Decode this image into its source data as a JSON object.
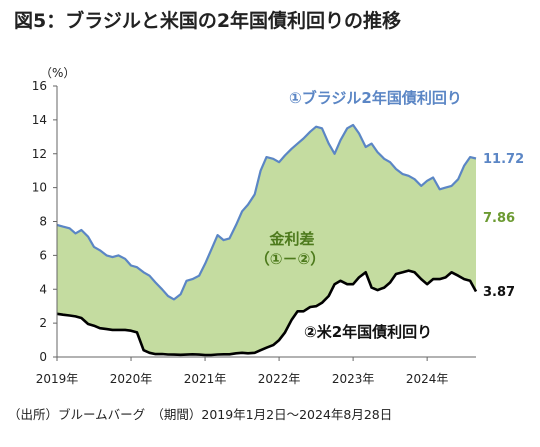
{
  "title": "図5：ブラジルと米国の2年国債利回りの推移",
  "source_note": "（出所）ブルームバーグ　（期間）2019年1月2日～2024年8月28日",
  "chart_data": {
    "type": "line",
    "title": "図5：ブラジルと米国の2年国債利回りの推移",
    "ylabel": "（%）",
    "xlabel": "",
    "ylim": [
      0,
      16
    ],
    "yticks": [
      0,
      2,
      4,
      6,
      8,
      10,
      12,
      14,
      16
    ],
    "xlim": [
      2019.0,
      2024.66
    ],
    "xticks": [
      {
        "value": 2019,
        "label": "2019年"
      },
      {
        "value": 2020,
        "label": "2020年"
      },
      {
        "value": 2021,
        "label": "2021年"
      },
      {
        "value": 2022,
        "label": "2022年"
      },
      {
        "value": 2023,
        "label": "2023年"
      },
      {
        "value": 2024,
        "label": "2024年"
      }
    ],
    "grid": false,
    "colors": {
      "brazil": "#5b86c5",
      "us": "#000000",
      "spread": "#c4dca0",
      "spread_label": "#6c9a32"
    },
    "series": [
      {
        "name": "①ブラジル2年国債利回り",
        "style": "line",
        "color": "#5b86c5",
        "x": [
          2019.0,
          2019.08,
          2019.17,
          2019.25,
          2019.33,
          2019.42,
          2019.5,
          2019.58,
          2019.67,
          2019.75,
          2019.83,
          2019.92,
          2020.0,
          2020.08,
          2020.17,
          2020.25,
          2020.33,
          2020.42,
          2020.5,
          2020.58,
          2020.67,
          2020.75,
          2020.83,
          2020.92,
          2021.0,
          2021.08,
          2021.17,
          2021.25,
          2021.33,
          2021.42,
          2021.5,
          2021.58,
          2021.67,
          2021.75,
          2021.83,
          2021.92,
          2022.0,
          2022.08,
          2022.17,
          2022.25,
          2022.33,
          2022.42,
          2022.5,
          2022.58,
          2022.67,
          2022.75,
          2022.83,
          2022.92,
          2023.0,
          2023.08,
          2023.17,
          2023.25,
          2023.33,
          2023.42,
          2023.5,
          2023.58,
          2023.67,
          2023.75,
          2023.83,
          2023.92,
          2024.0,
          2024.08,
          2024.17,
          2024.25,
          2024.33,
          2024.42,
          2024.5,
          2024.58,
          2024.66
        ],
        "y": [
          7.8,
          7.7,
          7.6,
          7.3,
          7.5,
          7.1,
          6.5,
          6.3,
          6.0,
          5.9,
          6.0,
          5.8,
          5.4,
          5.3,
          5.0,
          4.8,
          4.4,
          4.0,
          3.6,
          3.4,
          3.7,
          4.5,
          4.6,
          4.8,
          5.5,
          6.3,
          7.2,
          6.9,
          7.0,
          7.8,
          8.6,
          9.0,
          9.6,
          11.0,
          11.8,
          11.7,
          11.5,
          11.9,
          12.3,
          12.6,
          12.9,
          13.3,
          13.6,
          13.5,
          12.6,
          12.0,
          12.8,
          13.5,
          13.7,
          13.2,
          12.4,
          12.6,
          12.1,
          11.7,
          11.5,
          11.1,
          10.8,
          10.7,
          10.5,
          10.1,
          10.4,
          10.6,
          9.9,
          10.0,
          10.1,
          10.5,
          11.3,
          11.8,
          11.72
        ]
      },
      {
        "name": "②米2年国債利回り",
        "style": "line",
        "color": "#000000",
        "x": [
          2019.0,
          2019.08,
          2019.17,
          2019.25,
          2019.33,
          2019.42,
          2019.5,
          2019.58,
          2019.67,
          2019.75,
          2019.83,
          2019.92,
          2020.0,
          2020.08,
          2020.17,
          2020.25,
          2020.33,
          2020.42,
          2020.5,
          2020.58,
          2020.67,
          2020.75,
          2020.83,
          2020.92,
          2021.0,
          2021.08,
          2021.17,
          2021.25,
          2021.33,
          2021.42,
          2021.5,
          2021.58,
          2021.67,
          2021.75,
          2021.83,
          2021.92,
          2022.0,
          2022.08,
          2022.17,
          2022.25,
          2022.33,
          2022.42,
          2022.5,
          2022.58,
          2022.67,
          2022.75,
          2022.83,
          2022.92,
          2023.0,
          2023.08,
          2023.17,
          2023.25,
          2023.33,
          2023.42,
          2023.5,
          2023.58,
          2023.67,
          2023.75,
          2023.83,
          2023.92,
          2024.0,
          2024.08,
          2024.17,
          2024.25,
          2024.33,
          2024.42,
          2024.5,
          2024.58,
          2024.66
        ],
        "y": [
          2.55,
          2.5,
          2.45,
          2.4,
          2.3,
          1.95,
          1.85,
          1.7,
          1.65,
          1.6,
          1.6,
          1.6,
          1.55,
          1.45,
          0.4,
          0.25,
          0.17,
          0.18,
          0.15,
          0.14,
          0.13,
          0.14,
          0.16,
          0.14,
          0.12,
          0.12,
          0.15,
          0.16,
          0.16,
          0.22,
          0.25,
          0.22,
          0.25,
          0.4,
          0.55,
          0.7,
          1.0,
          1.45,
          2.2,
          2.7,
          2.7,
          2.95,
          3.0,
          3.2,
          3.6,
          4.3,
          4.5,
          4.3,
          4.3,
          4.7,
          5.0,
          4.1,
          3.95,
          4.1,
          4.4,
          4.9,
          5.0,
          5.1,
          5.0,
          4.6,
          4.3,
          4.6,
          4.6,
          4.7,
          5.0,
          4.8,
          4.6,
          4.5,
          3.87
        ]
      },
      {
        "name": "金利差（①－②）",
        "style": "area",
        "color": "#c4dca0",
        "derived_from": "①－②"
      }
    ],
    "labels": {
      "brazil_name": "①ブラジル2年国債利回り",
      "us_name": "②米2年国債利回り",
      "spread_line1": "金利差",
      "spread_line2": "（①－②）",
      "brazil_last": "11.72",
      "spread_last": "7.86",
      "us_last": "3.87"
    }
  }
}
